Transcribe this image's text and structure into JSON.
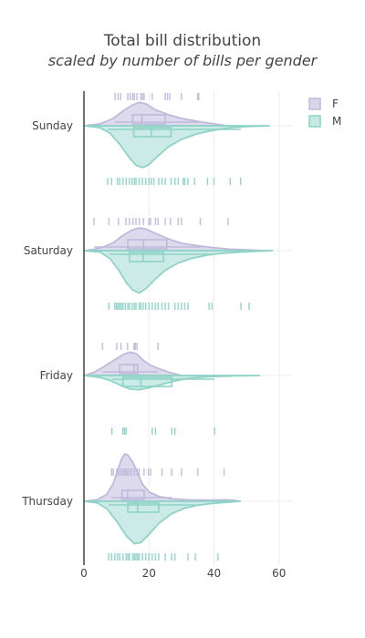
{
  "chart_data": {
    "type": "violin",
    "title": "Total bill distribution",
    "subtitle": "scaled by number of bills per gender",
    "xlim": [
      0,
      64
    ],
    "x_ticks": [
      0,
      20,
      40,
      60
    ],
    "categories": [
      "Sunday",
      "Saturday",
      "Friday",
      "Thursday"
    ],
    "legend_position": "top-right",
    "series": [
      {
        "name": "F",
        "side": "positive",
        "line_color": "#bebada",
        "fill_color": "#d9d6ec",
        "data": {
          "Sunday": {
            "box": {
              "q1": 15.0,
              "median": 17.8,
              "q3": 25.0
            },
            "whiskers": [
              9.6,
              35.3
            ],
            "range": [
              0,
              44
            ],
            "density": [
              [
                0,
                0
              ],
              [
                5,
                0.08
              ],
              [
                9,
                0.3
              ],
              [
                12,
                0.6
              ],
              [
                15,
                0.85
              ],
              [
                17,
                0.95
              ],
              [
                19,
                0.9
              ],
              [
                22,
                0.65
              ],
              [
                26,
                0.45
              ],
              [
                30,
                0.3
              ],
              [
                35,
                0.18
              ],
              [
                40,
                0.08
              ],
              [
                44,
                0
              ]
            ],
            "points": [
              9.6,
              10.5,
              11.3,
              13.5,
              14.2,
              15.0,
              15.5,
              16.3,
              17.5,
              18.0,
              18.5,
              21.0,
              25.0,
              25.7,
              26.4,
              30.0,
              35.0,
              35.3
            ]
          },
          "Saturday": {
            "box": {
              "q1": 13.5,
              "median": 18.3,
              "q3": 25.5
            },
            "whiskers": [
              3.1,
              36.0
            ],
            "range": [
              0,
              56
            ],
            "density": [
              [
                0,
                0
              ],
              [
                3,
                0.05
              ],
              [
                6,
                0.15
              ],
              [
                9,
                0.32
              ],
              [
                12,
                0.62
              ],
              [
                15,
                0.85
              ],
              [
                17,
                0.92
              ],
              [
                19,
                0.88
              ],
              [
                22,
                0.7
              ],
              [
                26,
                0.48
              ],
              [
                30,
                0.3
              ],
              [
                35,
                0.2
              ],
              [
                40,
                0.12
              ],
              [
                45,
                0.06
              ],
              [
                50,
                0.03
              ],
              [
                56,
                0
              ]
            ],
            "points": [
              3.1,
              7.7,
              10.6,
              12.9,
              14.0,
              15.1,
              16.0,
              17.0,
              18.3,
              20.0,
              20.5,
              22.0,
              22.8,
              25.0,
              26.6,
              29.0,
              30.0,
              35.8,
              44.3
            ]
          },
          "Friday": {
            "box": {
              "q1": 11.0,
              "median": 15.4,
              "q3": 16.5
            },
            "whiskers": [
              5.7,
              22.8
            ],
            "range": [
              0,
              30
            ],
            "density": [
              [
                0,
                0
              ],
              [
                3,
                0.12
              ],
              [
                6,
                0.35
              ],
              [
                9,
                0.6
              ],
              [
                12,
                0.85
              ],
              [
                14,
                0.95
              ],
              [
                16,
                0.9
              ],
              [
                18,
                0.65
              ],
              [
                20,
                0.45
              ],
              [
                23,
                0.28
              ],
              [
                26,
                0.14
              ],
              [
                30,
                0
              ]
            ],
            "points": [
              5.7,
              10.1,
              11.4,
              13.4,
              15.4,
              15.8,
              16.3,
              22.8
            ]
          },
          "Thursday": {
            "box": {
              "q1": 11.7,
              "median": 13.4,
              "q3": 18.5
            },
            "whiskers": [
              8.5,
              27.0
            ],
            "range": [
              0,
              48
            ],
            "density": [
              [
                0,
                0
              ],
              [
                4,
                0.06
              ],
              [
                7,
                0.28
              ],
              [
                9,
                0.72
              ],
              [
                10.5,
                1.3
              ],
              [
                11.5,
                1.7
              ],
              [
                12.5,
                1.92
              ],
              [
                13.5,
                1.88
              ],
              [
                15,
                1.6
              ],
              [
                16.5,
                1.15
              ],
              [
                18,
                0.7
              ],
              [
                20,
                0.38
              ],
              [
                23,
                0.2
              ],
              [
                27,
                0.1
              ],
              [
                32,
                0.06
              ],
              [
                37,
                0.05
              ],
              [
                41,
                0.05
              ],
              [
                44,
                0.06
              ],
              [
                46,
                0.04
              ],
              [
                48,
                0
              ]
            ],
            "points": [
              8.5,
              9.0,
              10.1,
              10.7,
              11.4,
              12.0,
              12.5,
              13.0,
              13.4,
              14.0,
              14.7,
              15.5,
              16.4,
              17.0,
              18.5,
              19.8,
              20.5,
              24.0,
              27.0,
              30.0,
              35.0,
              43.1
            ]
          }
        }
      },
      {
        "name": "M",
        "side": "negative",
        "line_color": "#8dd3c7",
        "fill_color": "#c6e9e3",
        "data": {
          "Sunday": {
            "box": {
              "q1": 15.3,
              "median": 20.7,
              "q3": 26.8
            },
            "whiskers": [
              7.3,
              48.2
            ],
            "range": [
              0,
              57
            ],
            "density": [
              [
                0,
                0
              ],
              [
                5,
                0.08
              ],
              [
                8,
                0.3
              ],
              [
                11,
                0.75
              ],
              [
                14,
                1.3
              ],
              [
                16,
                1.6
              ],
              [
                18,
                1.7
              ],
              [
                20,
                1.58
              ],
              [
                23,
                1.2
              ],
              [
                26,
                0.85
              ],
              [
                30,
                0.55
              ],
              [
                35,
                0.32
              ],
              [
                40,
                0.18
              ],
              [
                45,
                0.08
              ],
              [
                50,
                0.03
              ],
              [
                57,
                0
              ]
            ],
            "points": [
              7.3,
              8.5,
              10.3,
              11.0,
              12.0,
              13.0,
              14.0,
              14.8,
              15.5,
              16.0,
              17.0,
              18.0,
              19.0,
              20.0,
              20.7,
              21.5,
              23.0,
              24.0,
              25.0,
              26.8,
              28.0,
              29.0,
              30.5,
              31.0,
              32.0,
              34.0,
              38.0,
              40.0,
              45.0,
              48.2
            ]
          },
          "Saturday": {
            "box": {
              "q1": 14.0,
              "median": 18.2,
              "q3": 24.5
            },
            "whiskers": [
              7.7,
              39.4
            ],
            "range": [
              0,
              58
            ],
            "density": [
              [
                0,
                0
              ],
              [
                5,
                0.06
              ],
              [
                8,
                0.32
              ],
              [
                11,
                0.85
              ],
              [
                13,
                1.3
              ],
              [
                15,
                1.6
              ],
              [
                17,
                1.72
              ],
              [
                19,
                1.55
              ],
              [
                22,
                1.15
              ],
              [
                25,
                0.8
              ],
              [
                29,
                0.5
              ],
              [
                33,
                0.32
              ],
              [
                38,
                0.18
              ],
              [
                43,
                0.1
              ],
              [
                48,
                0.06
              ],
              [
                52,
                0.03
              ],
              [
                58,
                0
              ]
            ],
            "points": [
              7.7,
              9.5,
              10.0,
              10.5,
              11.0,
              11.5,
              12.0,
              12.7,
              13.5,
              14.0,
              14.8,
              15.5,
              16.0,
              17.0,
              17.5,
              18.2,
              19.0,
              20.0,
              21.0,
              22.0,
              22.8,
              24.0,
              25.0,
              26.0,
              28.0,
              29.0,
              30.0,
              31.0,
              32.0,
              38.5,
              39.4,
              48.3,
              50.8
            ]
          },
          "Friday": {
            "box": {
              "q1": 12.0,
              "median": 17.5,
              "q3": 27.0
            },
            "whiskers": [
              8.6,
              40.2
            ],
            "range": [
              0,
              54
            ],
            "density": [
              [
                0,
                0
              ],
              [
                5,
                0.08
              ],
              [
                8,
                0.2
              ],
              [
                11,
                0.38
              ],
              [
                14,
                0.55
              ],
              [
                17,
                0.58
              ],
              [
                20,
                0.5
              ],
              [
                24,
                0.36
              ],
              [
                28,
                0.22
              ],
              [
                32,
                0.12
              ],
              [
                36,
                0.07
              ],
              [
                40,
                0.04
              ],
              [
                45,
                0.02
              ],
              [
                54,
                0
              ]
            ],
            "points": [
              8.6,
              12.0,
              12.5,
              13.0,
              21.0,
              22.0,
              27.0,
              28.0,
              40.2
            ]
          },
          "Thursday": {
            "box": {
              "q1": 13.5,
              "median": 16.5,
              "q3": 23.0
            },
            "whiskers": [
              7.6,
              34.3
            ],
            "range": [
              0,
              48
            ],
            "density": [
              [
                0,
                0
              ],
              [
                4,
                0.06
              ],
              [
                7,
                0.3
              ],
              [
                10,
                0.8
              ],
              [
                13,
                1.4
              ],
              [
                15.5,
                1.72
              ],
              [
                17.5,
                1.68
              ],
              [
                20,
                1.35
              ],
              [
                23,
                0.9
              ],
              [
                27,
                0.5
              ],
              [
                31,
                0.28
              ],
              [
                35,
                0.16
              ],
              [
                40,
                0.08
              ],
              [
                44,
                0.04
              ],
              [
                48,
                0
              ]
            ],
            "points": [
              7.6,
              8.5,
              9.5,
              10.3,
              11.0,
              12.0,
              13.0,
              13.5,
              14.0,
              15.0,
              15.5,
              16.0,
              16.5,
              17.0,
              18.0,
              19.0,
              20.0,
              21.0,
              22.0,
              23.0,
              25.0,
              27.0,
              28.0,
              32.0,
              34.3,
              41.2
            ]
          }
        }
      }
    ]
  }
}
